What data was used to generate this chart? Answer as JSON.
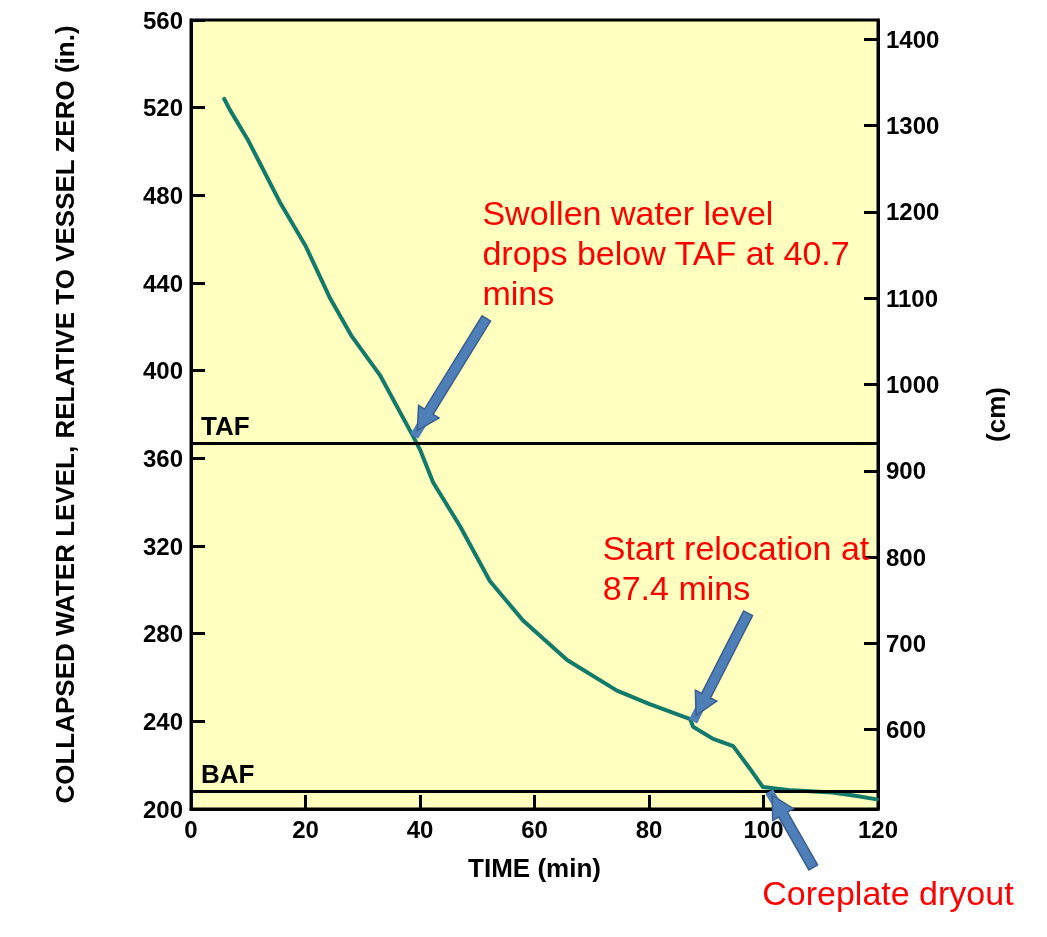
{
  "chart_data": {
    "type": "line",
    "xlabel": "TIME (min)",
    "ylabel": "COLLAPSED WATER LEVEL, RELATIVE TO VESSEL ZERO (in.)",
    "y2label": "(cm)",
    "xlim": [
      0,
      120
    ],
    "xticks": [
      0,
      20,
      40,
      60,
      80,
      100,
      120
    ],
    "ylim": [
      200,
      560
    ],
    "yticks": [
      200,
      240,
      280,
      320,
      360,
      400,
      440,
      480,
      520,
      560
    ],
    "y2lim": [
      508,
      1422.4
    ],
    "y2ticks": [
      600,
      700,
      800,
      900,
      1000,
      1100,
      1200,
      1300,
      1400
    ],
    "marker": "none",
    "line_style": "solid",
    "series": [
      {
        "color": "#127a6a",
        "x": [
          5.8,
          6.8,
          10,
          15.5,
          20,
          24.3,
          28,
          33,
          38.8,
          40,
          42.3,
          47,
          52.2,
          58,
          65.7,
          74.4,
          80,
          87.2,
          87.7,
          91.2,
          94.7,
          97.6,
          99.9,
          105,
          112,
          116,
          119.8
        ],
        "values": [
          524,
          519,
          505,
          477,
          457,
          433,
          416,
          398,
          370,
          364,
          349,
          329,
          304,
          286,
          268,
          254,
          248,
          241,
          237.5,
          232,
          228.7,
          218.5,
          210,
          208.5,
          207.5,
          206,
          204.4
        ]
      }
    ],
    "ref_lines": [
      {
        "axis": "y",
        "value": 367,
        "label": "TAF",
        "color": "#000000"
      },
      {
        "axis": "y",
        "value": 208,
        "label": "BAF",
        "color": "#000000"
      }
    ],
    "annotations": [
      {
        "text": "Swollen water level drops below TAF at 40.7 mins",
        "x": 39,
        "y": 370
      },
      {
        "text": "Start relocation at 87.4 mins",
        "x": 87.7,
        "y": 240
      },
      {
        "text": "Coreplate dryout",
        "x": 101,
        "y": 208
      }
    ]
  }
}
